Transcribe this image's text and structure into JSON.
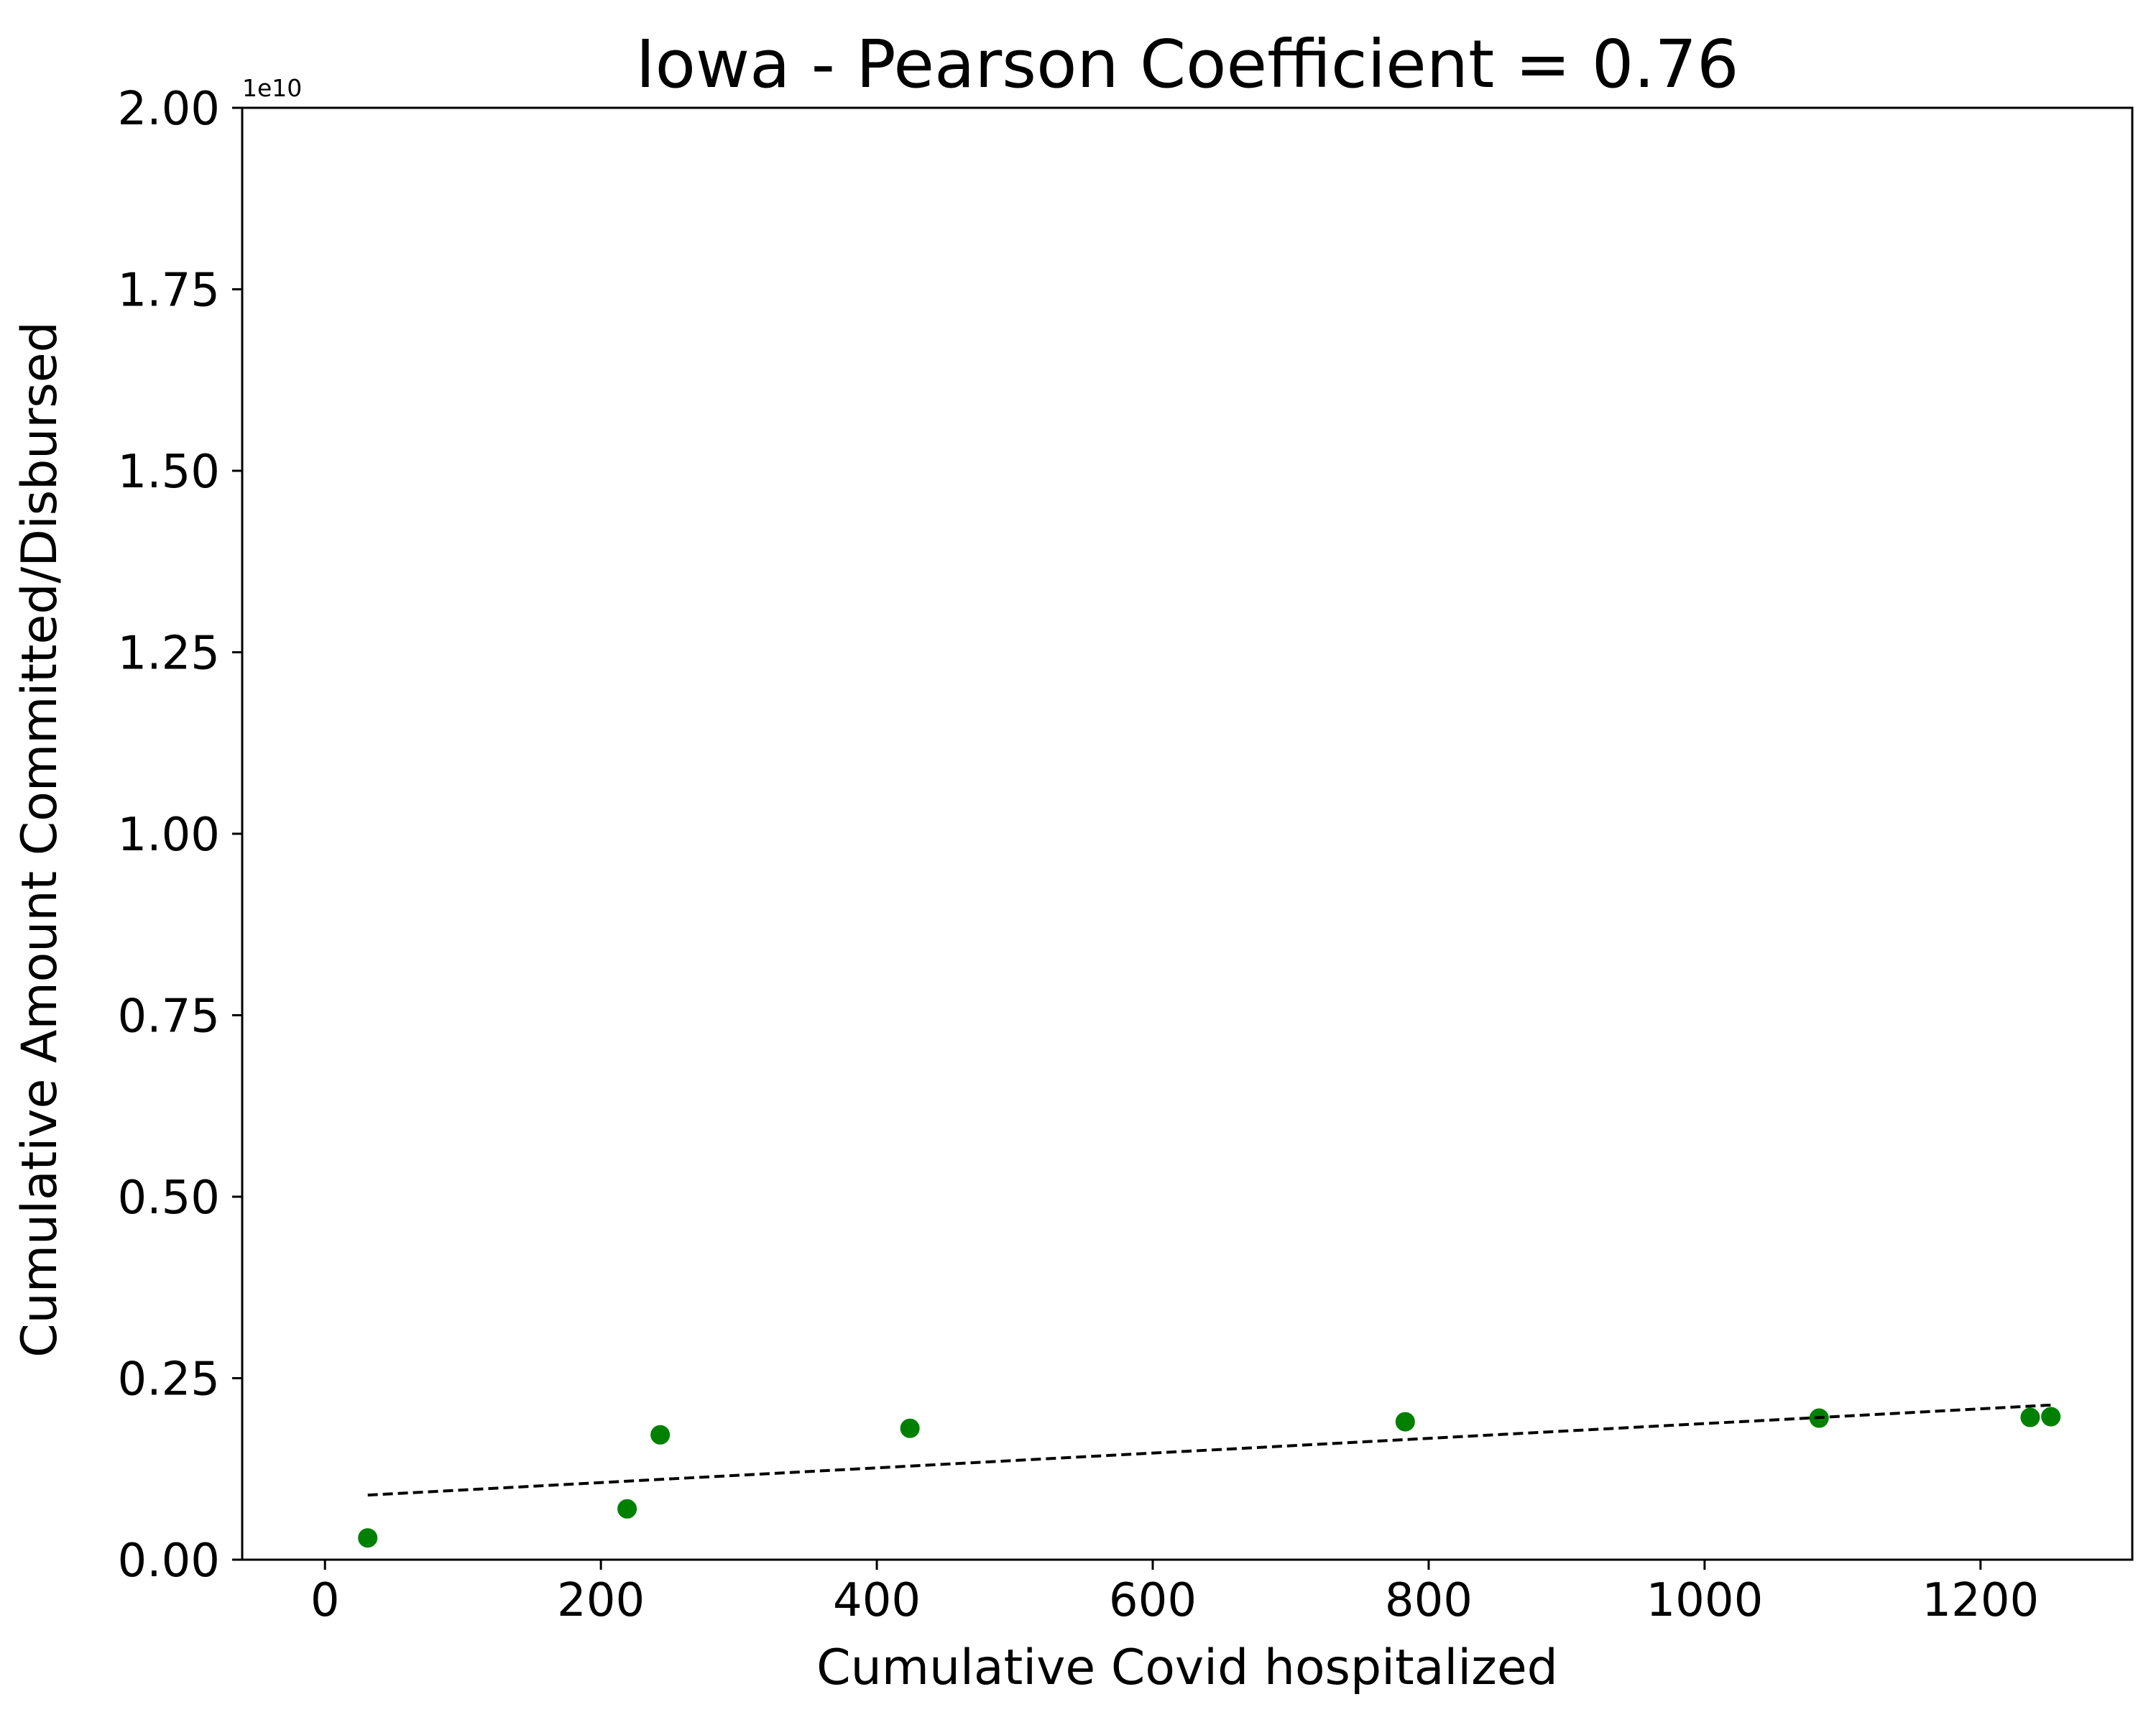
{
  "chart_data": {
    "type": "scatter",
    "title": "Iowa - Pearson Coefficient = 0.76",
    "xlabel": "Cumulative Covid hospitalized",
    "ylabel": "Cumulative Amount Committed/Disbursed",
    "y_offset_label": "1e10",
    "xlim": [
      -60,
      1310
    ],
    "ylim": [
      0,
      2.0
    ],
    "x_ticks": [
      0,
      200,
      400,
      600,
      800,
      1000,
      1200
    ],
    "x_tick_labels": [
      "0",
      "200",
      "400",
      "600",
      "800",
      "1000",
      "1200"
    ],
    "y_ticks": [
      0,
      0.25,
      0.5,
      0.75,
      1.0,
      1.25,
      1.5,
      1.75,
      2.0
    ],
    "y_tick_labels": [
      "0.00",
      "0.25",
      "0.50",
      "0.75",
      "1.00",
      "1.25",
      "1.50",
      "1.75",
      "2.00"
    ],
    "grid": false,
    "legend": "none",
    "series": [
      {
        "points": [
          {
            "x": 31,
            "y": 0.03
          },
          {
            "x": 219,
            "y": 0.07
          },
          {
            "x": 243,
            "y": 0.172
          },
          {
            "x": 424,
            "y": 0.181
          },
          {
            "x": 783,
            "y": 0.19
          },
          {
            "x": 1083,
            "y": 0.195
          },
          {
            "x": 1236,
            "y": 0.196
          },
          {
            "x": 1251,
            "y": 0.197
          }
        ],
        "color": "#008000"
      }
    ],
    "trendline": {
      "x": [
        31,
        1251
      ],
      "y": [
        0.089,
        0.213
      ],
      "color": "#000000",
      "style": "dashed"
    }
  }
}
